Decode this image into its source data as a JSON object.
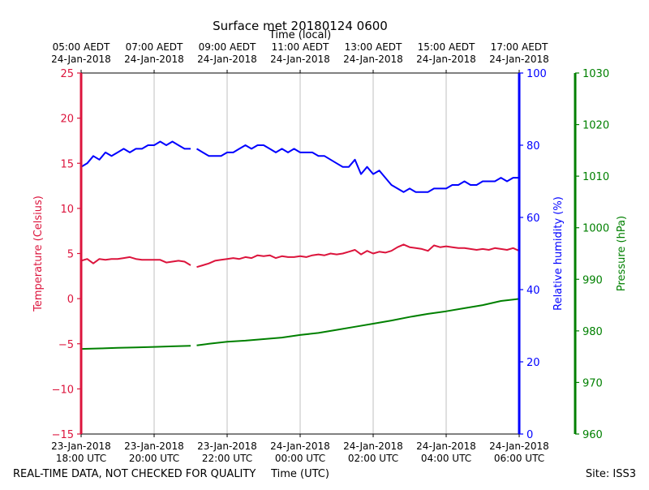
{
  "chart_data": {
    "type": "line",
    "title": "Surface met 20180124 0600",
    "top_xlabel": "Time (local)",
    "xlabel": "Time (UTC)",
    "footer_left": "REAL-TIME DATA, NOT CHECKED FOR QUALITY",
    "footer_right": "Site: ISS3",
    "grid": "vertical",
    "x_range": [
      "23-Jan-2018 18:00 UTC",
      "24-Jan-2018 06:00 UTC"
    ],
    "x_ticks": [
      {
        "utc": [
          "23-Jan-2018",
          "18:00 UTC"
        ],
        "local": [
          "05:00 AEDT",
          "24-Jan-2018"
        ]
      },
      {
        "utc": [
          "23-Jan-2018",
          "20:00 UTC"
        ],
        "local": [
          "07:00 AEDT",
          "24-Jan-2018"
        ]
      },
      {
        "utc": [
          "23-Jan-2018",
          "22:00 UTC"
        ],
        "local": [
          "09:00 AEDT",
          "24-Jan-2018"
        ]
      },
      {
        "utc": [
          "24-Jan-2018",
          "00:00 UTC"
        ],
        "local": [
          "11:00 AEDT",
          "24-Jan-2018"
        ]
      },
      {
        "utc": [
          "24-Jan-2018",
          "02:00 UTC"
        ],
        "local": [
          "13:00 AEDT",
          "24-Jan-2018"
        ]
      },
      {
        "utc": [
          "24-Jan-2018",
          "04:00 UTC"
        ],
        "local": [
          "15:00 AEDT",
          "24-Jan-2018"
        ]
      },
      {
        "utc": [
          "24-Jan-2018",
          "06:00 UTC"
        ],
        "local": [
          "17:00 AEDT",
          "24-Jan-2018"
        ]
      }
    ],
    "axes": [
      {
        "name": "temperature",
        "label": "Temperature (Celsius)",
        "color": "#dc143c",
        "range": [
          -15,
          25
        ],
        "ticks": [
          -15,
          -10,
          -5,
          0,
          5,
          10,
          15,
          20,
          25
        ],
        "side": "left"
      },
      {
        "name": "humidity",
        "label": "Relative humidity (%)",
        "color": "#0000ff",
        "range": [
          0,
          100
        ],
        "ticks": [
          0,
          20,
          40,
          60,
          80,
          100
        ],
        "side": "right"
      },
      {
        "name": "pressure",
        "label": "Pressure (hPa)",
        "color": "#008000",
        "range": [
          960,
          1030
        ],
        "ticks": [
          960,
          970,
          980,
          990,
          1000,
          1010,
          1020,
          1030
        ],
        "side": "right-offset"
      }
    ],
    "series": [
      {
        "axis": "temperature",
        "color": "#dc143c",
        "points": [
          [
            "23-Jan-2018 18:00 UTC",
            4.2
          ],
          [
            "23-Jan-2018 18:10 UTC",
            4.4
          ],
          [
            "23-Jan-2018 18:20 UTC",
            3.9
          ],
          [
            "23-Jan-2018 18:30 UTC",
            4.4
          ],
          [
            "23-Jan-2018 18:40 UTC",
            4.3
          ],
          [
            "23-Jan-2018 18:50 UTC",
            4.4
          ],
          [
            "23-Jan-2018 19:00 UTC",
            4.4
          ],
          [
            "23-Jan-2018 19:10 UTC",
            4.5
          ],
          [
            "23-Jan-2018 19:20 UTC",
            4.6
          ],
          [
            "23-Jan-2018 19:30 UTC",
            4.4
          ],
          [
            "23-Jan-2018 19:40 UTC",
            4.3
          ],
          [
            "23-Jan-2018 19:50 UTC",
            4.3
          ],
          [
            "23-Jan-2018 20:00 UTC",
            4.3
          ],
          [
            "23-Jan-2018 20:10 UTC",
            4.3
          ],
          [
            "23-Jan-2018 20:20 UTC",
            4.0
          ],
          [
            "23-Jan-2018 20:30 UTC",
            4.1
          ],
          [
            "23-Jan-2018 20:40 UTC",
            4.2
          ],
          [
            "23-Jan-2018 20:50 UTC",
            4.1
          ],
          [
            "23-Jan-2018 21:00 UTC",
            3.7
          ],
          null,
          [
            "23-Jan-2018 21:10 UTC",
            3.5
          ],
          [
            "23-Jan-2018 21:20 UTC",
            3.7
          ],
          [
            "23-Jan-2018 21:30 UTC",
            3.9
          ],
          [
            "23-Jan-2018 21:40 UTC",
            4.2
          ],
          [
            "23-Jan-2018 21:50 UTC",
            4.3
          ],
          [
            "23-Jan-2018 22:00 UTC",
            4.4
          ],
          [
            "23-Jan-2018 22:10 UTC",
            4.5
          ],
          [
            "23-Jan-2018 22:20 UTC",
            4.4
          ],
          [
            "23-Jan-2018 22:30 UTC",
            4.6
          ],
          [
            "23-Jan-2018 22:40 UTC",
            4.5
          ],
          [
            "23-Jan-2018 22:50 UTC",
            4.8
          ],
          [
            "23-Jan-2018 23:00 UTC",
            4.7
          ],
          [
            "23-Jan-2018 23:10 UTC",
            4.8
          ],
          [
            "23-Jan-2018 23:20 UTC",
            4.5
          ],
          [
            "23-Jan-2018 23:30 UTC",
            4.7
          ],
          [
            "23-Jan-2018 23:40 UTC",
            4.6
          ],
          [
            "23-Jan-2018 23:50 UTC",
            4.6
          ],
          [
            "24-Jan-2018 00:00 UTC",
            4.7
          ],
          [
            "24-Jan-2018 00:10 UTC",
            4.6
          ],
          [
            "24-Jan-2018 00:20 UTC",
            4.8
          ],
          [
            "24-Jan-2018 00:30 UTC",
            4.9
          ],
          [
            "24-Jan-2018 00:40 UTC",
            4.8
          ],
          [
            "24-Jan-2018 00:50 UTC",
            5.0
          ],
          [
            "24-Jan-2018 01:00 UTC",
            4.9
          ],
          [
            "24-Jan-2018 01:10 UTC",
            5.0
          ],
          [
            "24-Jan-2018 01:20 UTC",
            5.2
          ],
          [
            "24-Jan-2018 01:30 UTC",
            5.4
          ],
          [
            "24-Jan-2018 01:40 UTC",
            4.9
          ],
          [
            "24-Jan-2018 01:50 UTC",
            5.3
          ],
          [
            "24-Jan-2018 02:00 UTC",
            5.0
          ],
          [
            "24-Jan-2018 02:10 UTC",
            5.2
          ],
          [
            "24-Jan-2018 02:20 UTC",
            5.1
          ],
          [
            "24-Jan-2018 02:30 UTC",
            5.3
          ],
          [
            "24-Jan-2018 02:40 UTC",
            5.7
          ],
          [
            "24-Jan-2018 02:50 UTC",
            6.0
          ],
          [
            "24-Jan-2018 03:00 UTC",
            5.7
          ],
          [
            "24-Jan-2018 03:10 UTC",
            5.6
          ],
          [
            "24-Jan-2018 03:20 UTC",
            5.5
          ],
          [
            "24-Jan-2018 03:30 UTC",
            5.3
          ],
          [
            "24-Jan-2018 03:40 UTC",
            5.9
          ],
          [
            "24-Jan-2018 03:50 UTC",
            5.7
          ],
          [
            "24-Jan-2018 04:00 UTC",
            5.8
          ],
          [
            "24-Jan-2018 04:10 UTC",
            5.7
          ],
          [
            "24-Jan-2018 04:20 UTC",
            5.6
          ],
          [
            "24-Jan-2018 04:30 UTC",
            5.6
          ],
          [
            "24-Jan-2018 04:40 UTC",
            5.5
          ],
          [
            "24-Jan-2018 04:50 UTC",
            5.4
          ],
          [
            "24-Jan-2018 05:00 UTC",
            5.5
          ],
          [
            "24-Jan-2018 05:10 UTC",
            5.4
          ],
          [
            "24-Jan-2018 05:20 UTC",
            5.6
          ],
          [
            "24-Jan-2018 05:30 UTC",
            5.5
          ],
          [
            "24-Jan-2018 05:40 UTC",
            5.4
          ],
          [
            "24-Jan-2018 05:50 UTC",
            5.6
          ],
          [
            "24-Jan-2018 06:00 UTC",
            5.3
          ]
        ]
      },
      {
        "axis": "humidity",
        "color": "#0000ff",
        "points": [
          [
            "23-Jan-2018 18:00 UTC",
            74
          ],
          [
            "23-Jan-2018 18:10 UTC",
            75
          ],
          [
            "23-Jan-2018 18:20 UTC",
            77
          ],
          [
            "23-Jan-2018 18:30 UTC",
            76
          ],
          [
            "23-Jan-2018 18:40 UTC",
            78
          ],
          [
            "23-Jan-2018 18:50 UTC",
            77
          ],
          [
            "23-Jan-2018 19:00 UTC",
            78
          ],
          [
            "23-Jan-2018 19:10 UTC",
            79
          ],
          [
            "23-Jan-2018 19:20 UTC",
            78
          ],
          [
            "23-Jan-2018 19:30 UTC",
            79
          ],
          [
            "23-Jan-2018 19:40 UTC",
            79
          ],
          [
            "23-Jan-2018 19:50 UTC",
            80
          ],
          [
            "23-Jan-2018 20:00 UTC",
            80
          ],
          [
            "23-Jan-2018 20:10 UTC",
            81
          ],
          [
            "23-Jan-2018 20:20 UTC",
            80
          ],
          [
            "23-Jan-2018 20:30 UTC",
            81
          ],
          [
            "23-Jan-2018 20:40 UTC",
            80
          ],
          [
            "23-Jan-2018 20:50 UTC",
            79
          ],
          [
            "23-Jan-2018 21:00 UTC",
            79
          ],
          null,
          [
            "23-Jan-2018 21:10 UTC",
            79
          ],
          [
            "23-Jan-2018 21:20 UTC",
            78
          ],
          [
            "23-Jan-2018 21:30 UTC",
            77
          ],
          [
            "23-Jan-2018 21:40 UTC",
            77
          ],
          [
            "23-Jan-2018 21:50 UTC",
            77
          ],
          [
            "23-Jan-2018 22:00 UTC",
            78
          ],
          [
            "23-Jan-2018 22:10 UTC",
            78
          ],
          [
            "23-Jan-2018 22:20 UTC",
            79
          ],
          [
            "23-Jan-2018 22:30 UTC",
            80
          ],
          [
            "23-Jan-2018 22:40 UTC",
            79
          ],
          [
            "23-Jan-2018 22:50 UTC",
            80
          ],
          [
            "23-Jan-2018 23:00 UTC",
            80
          ],
          [
            "23-Jan-2018 23:10 UTC",
            79
          ],
          [
            "23-Jan-2018 23:20 UTC",
            78
          ],
          [
            "23-Jan-2018 23:30 UTC",
            79
          ],
          [
            "23-Jan-2018 23:40 UTC",
            78
          ],
          [
            "23-Jan-2018 23:50 UTC",
            79
          ],
          [
            "24-Jan-2018 00:00 UTC",
            78
          ],
          [
            "24-Jan-2018 00:10 UTC",
            78
          ],
          [
            "24-Jan-2018 00:20 UTC",
            78
          ],
          [
            "24-Jan-2018 00:30 UTC",
            77
          ],
          [
            "24-Jan-2018 00:40 UTC",
            77
          ],
          [
            "24-Jan-2018 00:50 UTC",
            76
          ],
          [
            "24-Jan-2018 01:00 UTC",
            75
          ],
          [
            "24-Jan-2018 01:10 UTC",
            74
          ],
          [
            "24-Jan-2018 01:20 UTC",
            74
          ],
          [
            "24-Jan-2018 01:30 UTC",
            76
          ],
          [
            "24-Jan-2018 01:40 UTC",
            72
          ],
          [
            "24-Jan-2018 01:50 UTC",
            74
          ],
          [
            "24-Jan-2018 02:00 UTC",
            72
          ],
          [
            "24-Jan-2018 02:10 UTC",
            73
          ],
          [
            "24-Jan-2018 02:20 UTC",
            71
          ],
          [
            "24-Jan-2018 02:30 UTC",
            69
          ],
          [
            "24-Jan-2018 02:40 UTC",
            68
          ],
          [
            "24-Jan-2018 02:50 UTC",
            67
          ],
          [
            "24-Jan-2018 03:00 UTC",
            68
          ],
          [
            "24-Jan-2018 03:10 UTC",
            67
          ],
          [
            "24-Jan-2018 03:20 UTC",
            67
          ],
          [
            "24-Jan-2018 03:30 UTC",
            67
          ],
          [
            "24-Jan-2018 03:40 UTC",
            68
          ],
          [
            "24-Jan-2018 03:50 UTC",
            68
          ],
          [
            "24-Jan-2018 04:00 UTC",
            68
          ],
          [
            "24-Jan-2018 04:10 UTC",
            69
          ],
          [
            "24-Jan-2018 04:20 UTC",
            69
          ],
          [
            "24-Jan-2018 04:30 UTC",
            70
          ],
          [
            "24-Jan-2018 04:40 UTC",
            69
          ],
          [
            "24-Jan-2018 04:50 UTC",
            69
          ],
          [
            "24-Jan-2018 05:00 UTC",
            70
          ],
          [
            "24-Jan-2018 05:10 UTC",
            70
          ],
          [
            "24-Jan-2018 05:20 UTC",
            70
          ],
          [
            "24-Jan-2018 05:30 UTC",
            71
          ],
          [
            "24-Jan-2018 05:40 UTC",
            70
          ],
          [
            "24-Jan-2018 05:50 UTC",
            71
          ],
          [
            "24-Jan-2018 06:00 UTC",
            71
          ]
        ]
      },
      {
        "axis": "pressure",
        "color": "#008000",
        "points": [
          [
            "23-Jan-2018 18:00 UTC",
            976.5
          ],
          [
            "23-Jan-2018 18:30 UTC",
            976.6
          ],
          [
            "23-Jan-2018 19:00 UTC",
            976.7
          ],
          [
            "23-Jan-2018 19:30 UTC",
            976.8
          ],
          [
            "23-Jan-2018 20:00 UTC",
            976.9
          ],
          [
            "23-Jan-2018 20:30 UTC",
            977.0
          ],
          [
            "23-Jan-2018 21:00 UTC",
            977.1
          ],
          null,
          [
            "23-Jan-2018 21:10 UTC",
            977.2
          ],
          [
            "23-Jan-2018 21:30 UTC",
            977.5
          ],
          [
            "23-Jan-2018 22:00 UTC",
            977.9
          ],
          [
            "23-Jan-2018 22:30 UTC",
            978.1
          ],
          [
            "23-Jan-2018 23:00 UTC",
            978.4
          ],
          [
            "23-Jan-2018 23:30 UTC",
            978.7
          ],
          [
            "24-Jan-2018 00:00 UTC",
            979.2
          ],
          [
            "24-Jan-2018 00:30 UTC",
            979.6
          ],
          [
            "24-Jan-2018 01:00 UTC",
            980.2
          ],
          [
            "24-Jan-2018 01:30 UTC",
            980.8
          ],
          [
            "24-Jan-2018 02:00 UTC",
            981.4
          ],
          [
            "24-Jan-2018 02:30 UTC",
            982.0
          ],
          [
            "24-Jan-2018 03:00 UTC",
            982.7
          ],
          [
            "24-Jan-2018 03:30 UTC",
            983.3
          ],
          [
            "24-Jan-2018 04:00 UTC",
            983.8
          ],
          [
            "24-Jan-2018 04:30 UTC",
            984.4
          ],
          [
            "24-Jan-2018 05:00 UTC",
            985.0
          ],
          [
            "24-Jan-2018 05:30 UTC",
            985.8
          ],
          [
            "24-Jan-2018 06:00 UTC",
            986.2
          ]
        ]
      }
    ]
  }
}
